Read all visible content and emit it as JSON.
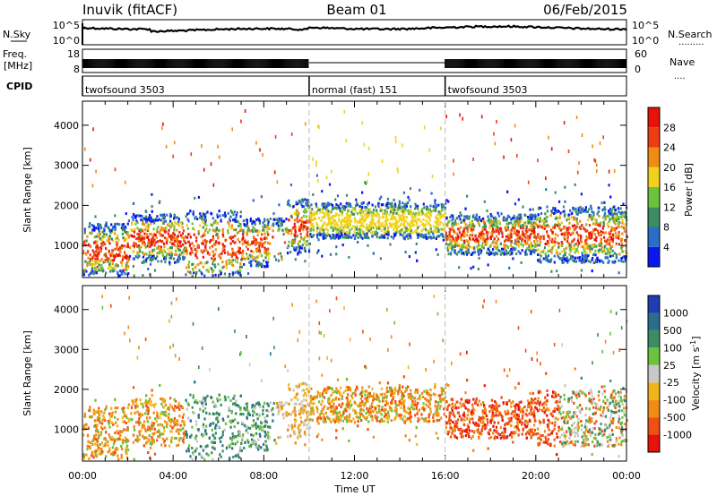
{
  "header": {
    "station": "Inuvik (fitACF)",
    "beam": "Beam 01",
    "date": "06/Feb/2015"
  },
  "left_labels": {
    "nsky": "N.Sky",
    "freq_line1": "Freq.",
    "freq_line2": "[MHz]",
    "cpid": "CPID"
  },
  "right_labels": {
    "nsearch": "N.Search",
    "nave": "Nave",
    "nsearch_dots": ".........",
    "nave_dots": "...."
  },
  "strip_ticks": {
    "nsky_top": "10^5",
    "nsky_bottom": "10^0",
    "nsearch_top": "10^5",
    "nsearch_bottom": "10^0",
    "freq_top": "18",
    "freq_bottom": "8",
    "nave_top": "60",
    "nave_bottom": "0"
  },
  "cpid_segments": [
    {
      "label": "twofsound 3503",
      "start_hour": 0,
      "end_hour": 10
    },
    {
      "label": "normal (fast) 151",
      "start_hour": 10,
      "end_hour": 16
    },
    {
      "label": "twofsound 3503",
      "start_hour": 16,
      "end_hour": 24
    }
  ],
  "chart_data": [
    {
      "type": "heatmap",
      "panel": "power",
      "ylabel": "Slant Range [km]",
      "ylim": [
        200,
        4600
      ],
      "yticks": [
        1000,
        2000,
        3000,
        4000
      ],
      "xlim": [
        0,
        24
      ],
      "colorbar": {
        "label": "Power [dB]",
        "ticks": [
          "4",
          "8",
          "12",
          "16",
          "20",
          "24",
          "28"
        ],
        "colors": [
          "#0a18f0",
          "#2a6ec8",
          "#3c8c64",
          "#6cc23c",
          "#f0d21c",
          "#f08c14",
          "#f03c14",
          "#e6120c"
        ]
      }
    },
    {
      "type": "heatmap",
      "panel": "velocity",
      "ylabel": "Slant Range [km]",
      "ylim": [
        200,
        4600
      ],
      "yticks": [
        1000,
        2000,
        3000,
        4000
      ],
      "xlim": [
        0,
        24
      ],
      "xlabel": "Time UT",
      "xticks": [
        "00:00",
        "04:00",
        "08:00",
        "12:00",
        "16:00",
        "20:00",
        "00:00"
      ],
      "colorbar": {
        "label": "Velocity [m s^-1]",
        "ticks": [
          "1000",
          "500",
          "100",
          "25",
          "-25",
          "-100",
          "-500",
          "-1000"
        ],
        "colors": [
          "#1e3cb4",
          "#2a6e8c",
          "#3c8c64",
          "#6cc23c",
          "#c8c8c8",
          "#f0b41c",
          "#f08c14",
          "#f05014",
          "#e6120c"
        ]
      }
    }
  ]
}
